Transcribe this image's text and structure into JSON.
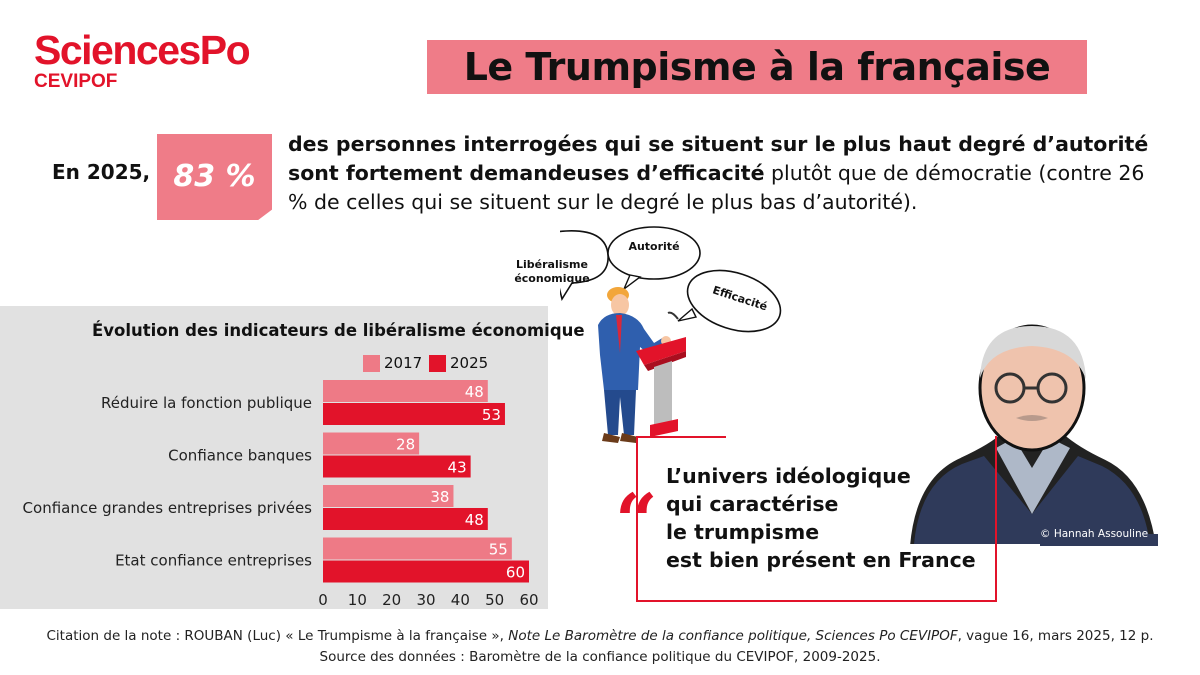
{
  "logo": {
    "name": "SciencesPo",
    "sub": "CEVIPOF"
  },
  "title": "Le Trumpisme à la française",
  "headline": {
    "year_label": "En 2025,",
    "percentage": "83 %",
    "text_bold": "des personnes interrogées qui se situent sur le plus haut degré d’autorité sont fortement demandeuses d’efficacité",
    "text_normal": " plutôt que de démocratie (contre 26 % de celles qui se situent sur le degré le plus bas d’autorité)."
  },
  "bubbles": {
    "liberalisme_line1": "Libéralisme",
    "liberalisme_line2": "économique",
    "autorite": "Autorité",
    "efficacite": "Efficacité"
  },
  "quote": {
    "mark": "“",
    "line1": "L’univers idéologique",
    "line2": "qui caractérise",
    "line3": "le trumpisme",
    "line4": "est bien présent en France"
  },
  "photo_credit": "Hannah Assouline",
  "footer": {
    "line1_prefix": "Citation de la note : ROUBAN (Luc) « Le Trumpisme à la française », ",
    "line1_italic": "Note Le Baromètre de la confiance politique, Sciences Po CEVIPOF",
    "line1_suffix": ", vague 16, mars 2025, 12 p.",
    "line2": "Source des données : Baromètre de la confiance politique du CEVIPOF, 2009-2025."
  },
  "chart_data": {
    "type": "bar",
    "orientation": "horizontal",
    "title": "Évolution des indicateurs de libéralisme économique",
    "categories": [
      "Réduire la fonction publique",
      "Confiance banques",
      "Confiance grandes entreprises privées",
      "Etat confiance entreprises"
    ],
    "series": [
      {
        "name": "2017",
        "values": [
          48,
          28,
          38,
          55
        ],
        "color": "#ee7a86"
      },
      {
        "name": "2025",
        "values": [
          53,
          43,
          48,
          60
        ],
        "color": "#e2132a"
      }
    ],
    "xlim": [
      0,
      60
    ],
    "xticks": [
      "0",
      "10",
      "20",
      "30",
      "40",
      "50",
      "60"
    ],
    "legend_position": "top",
    "grid": false
  },
  "colors": {
    "brand_red": "#e2132a",
    "pink": "#ef7c88",
    "panel_grey": "#e1e1e1"
  }
}
